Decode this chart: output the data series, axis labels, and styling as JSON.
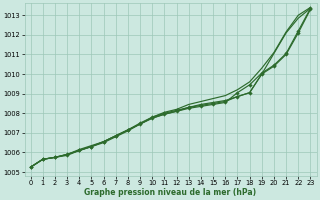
{
  "xlabel": "Graphe pression niveau de la mer (hPa)",
  "bg_color": "#cce8e0",
  "grid_color": "#9ec8b8",
  "line_color": "#2d6b2d",
  "xlim": [
    -0.5,
    23.5
  ],
  "ylim": [
    1004.8,
    1013.6
  ],
  "yticks": [
    1005,
    1006,
    1007,
    1008,
    1009,
    1010,
    1011,
    1012,
    1013
  ],
  "xticks": [
    0,
    1,
    2,
    3,
    4,
    5,
    6,
    7,
    8,
    9,
    10,
    11,
    12,
    13,
    14,
    15,
    16,
    17,
    18,
    19,
    20,
    21,
    22,
    23
  ],
  "line_smooth": [
    1005.25,
    1005.65,
    1005.75,
    1005.9,
    1006.15,
    1006.35,
    1006.55,
    1006.85,
    1007.15,
    1007.45,
    1007.75,
    1007.95,
    1008.1,
    1008.3,
    1008.45,
    1008.55,
    1008.65,
    1008.85,
    1009.05,
    1010.0,
    1011.05,
    1012.1,
    1012.85,
    1013.35
  ],
  "line_upper_smooth": [
    1005.25,
    1005.65,
    1005.75,
    1005.9,
    1006.1,
    1006.3,
    1006.5,
    1006.8,
    1007.1,
    1007.45,
    1007.8,
    1008.05,
    1008.2,
    1008.45,
    1008.6,
    1008.75,
    1008.9,
    1009.2,
    1009.6,
    1010.3,
    1011.1,
    1012.15,
    1013.0,
    1013.4
  ],
  "line_marker1": [
    1005.25,
    1005.65,
    1005.75,
    1005.85,
    1006.1,
    1006.3,
    1006.55,
    1006.85,
    1007.15,
    1007.5,
    1007.8,
    1008.0,
    1008.15,
    1008.3,
    1008.4,
    1008.5,
    1008.6,
    1008.85,
    1009.05,
    1010.0,
    1010.4,
    1011.0,
    1012.1,
    1013.3
  ],
  "line_marker2": [
    1005.25,
    1005.65,
    1005.75,
    1005.9,
    1006.1,
    1006.3,
    1006.55,
    1006.85,
    1007.15,
    1007.45,
    1007.75,
    1007.95,
    1008.1,
    1008.25,
    1008.35,
    1008.45,
    1008.55,
    1009.05,
    1009.45,
    1010.05,
    1010.45,
    1011.05,
    1012.2,
    1013.35
  ],
  "xlabel_fontsize": 5.5,
  "tick_fontsize": 4.8,
  "linewidth": 0.85,
  "markersize": 2.2
}
